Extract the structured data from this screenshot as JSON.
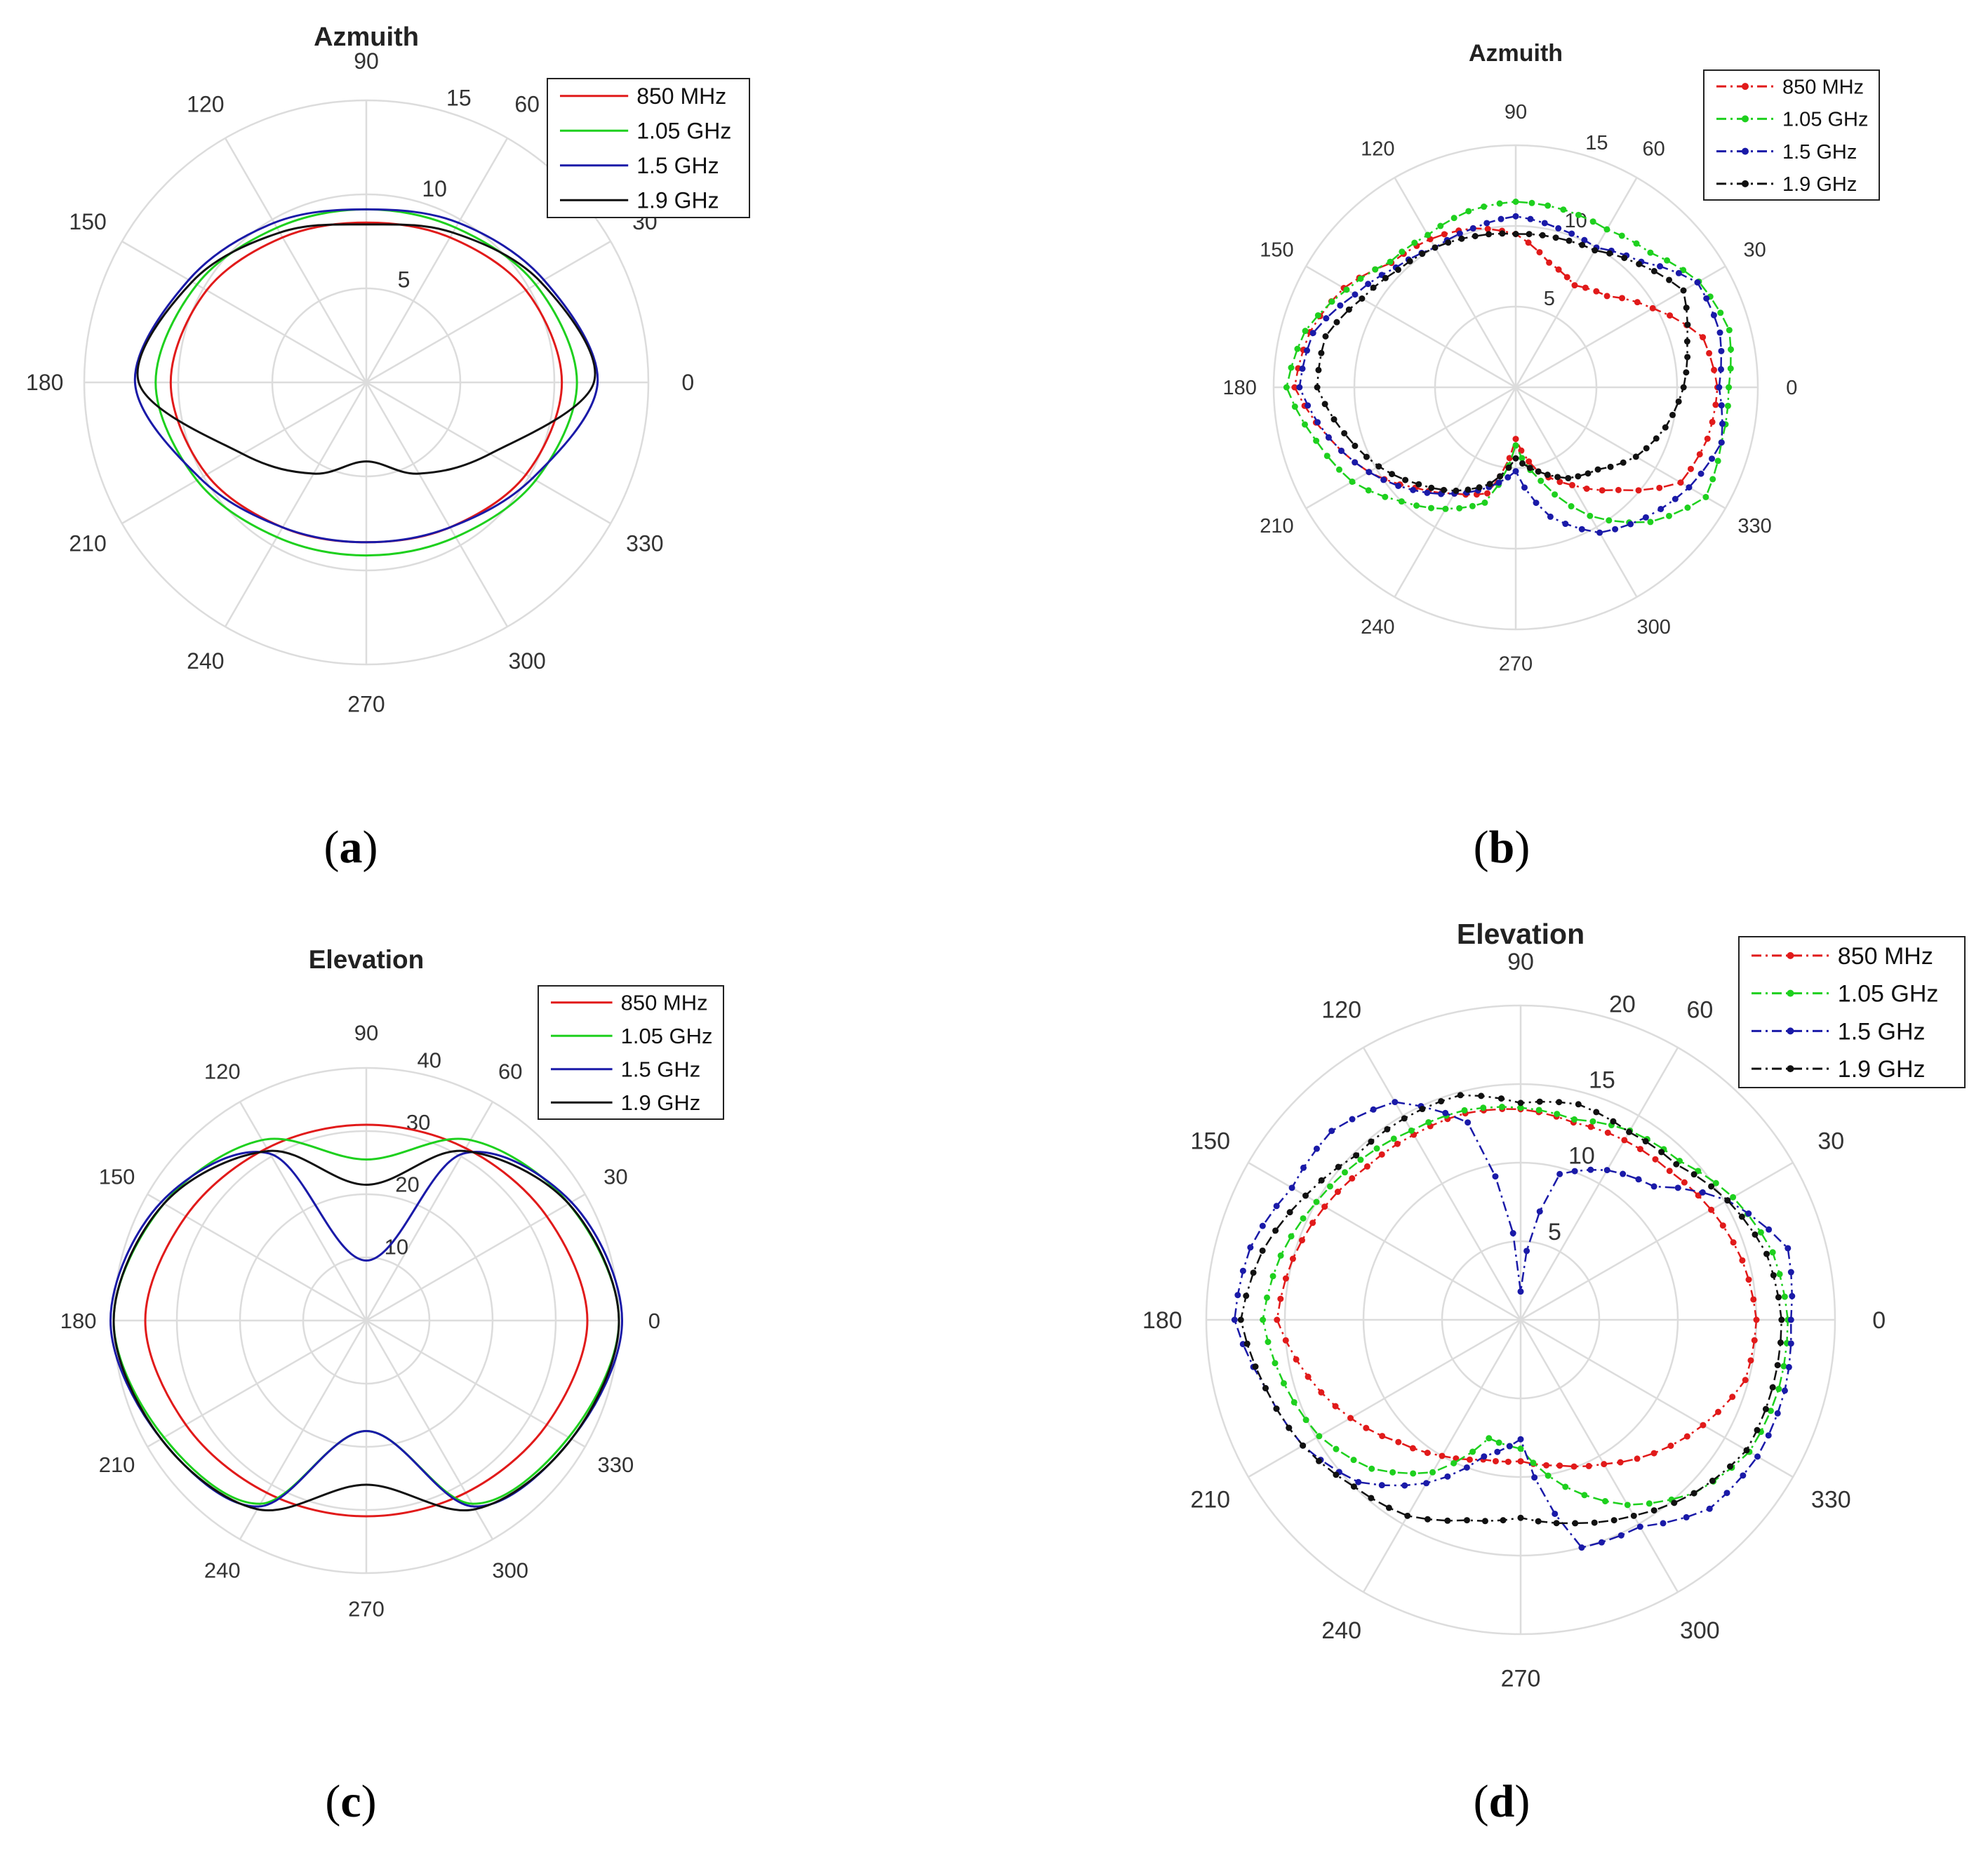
{
  "colors": {
    "850 MHz": "#e11a1a",
    "1.05 GHz": "#1ed01e",
    "1.5 GHz": "#1a1aa8",
    "1.9 GHz": "#111111",
    "grid": "#dcdcdc"
  },
  "captions": [
    {
      "open": "(",
      "letter": "a",
      "close": ")"
    },
    {
      "open": "(",
      "letter": "b",
      "close": ")"
    },
    {
      "open": "(",
      "letter": "c",
      "close": ")"
    },
    {
      "open": "(",
      "letter": "d",
      "close": ")"
    }
  ],
  "chart_data": [
    {
      "type": "polar-line",
      "title": "Azmuith",
      "style": "solid",
      "theta_ticks": [
        "0",
        "30",
        "60",
        "90",
        "120",
        "150",
        "180",
        "210",
        "240",
        "270",
        "300",
        "330"
      ],
      "r_ticks": [
        "5",
        "10",
        "15"
      ],
      "rlim": [
        0,
        15
      ],
      "legend": "top-right",
      "theta_deg": [
        0,
        30,
        60,
        90,
        120,
        150,
        180,
        210,
        240,
        270,
        300,
        330
      ],
      "series": [
        {
          "name": "850 MHz",
          "r": [
            10.4,
            9.8,
            8.9,
            8.5,
            8.9,
            9.8,
            10.4,
            9.8,
            8.9,
            8.5,
            8.9,
            9.8
          ]
        },
        {
          "name": "1.05 GHz",
          "r": [
            11.2,
            10.4,
            9.5,
            9.2,
            9.5,
            10.4,
            11.2,
            10.4,
            9.5,
            9.2,
            9.5,
            10.4
          ]
        },
        {
          "name": "1.5 GHz",
          "r": [
            12.3,
            10.9,
            9.8,
            9.2,
            9.8,
            10.9,
            12.3,
            10.2,
            8.9,
            8.5,
            8.9,
            10.2
          ]
        },
        {
          "name": "1.9 GHz",
          "r": [
            12.1,
            10.7,
            9.2,
            8.4,
            9.2,
            10.7,
            12.1,
            7.6,
            5.6,
            4.2,
            5.6,
            7.6
          ]
        }
      ]
    },
    {
      "type": "polar-line",
      "title": "Azmuith",
      "style": "dashdot-markers",
      "theta_ticks": [
        "0",
        "30",
        "60",
        "90",
        "120",
        "150",
        "180",
        "210",
        "240",
        "270",
        "300",
        "330"
      ],
      "r_ticks": [
        "5",
        "10",
        "15"
      ],
      "rlim": [
        0,
        15
      ],
      "legend": "top-right",
      "theta_deg": [
        0,
        15,
        30,
        45,
        60,
        75,
        90,
        105,
        120,
        135,
        150,
        165,
        180,
        195,
        210,
        225,
        240,
        255,
        270,
        285,
        300,
        315,
        330,
        345
      ],
      "series": [
        {
          "name": "850 MHz",
          "r": [
            12.5,
            12.0,
            9.8,
            8.0,
            7.3,
            8.0,
            9.5,
            10.2,
            10.6,
            10.9,
            12.3,
            13.2,
            13.7,
            12.0,
            10.5,
            8.8,
            7.6,
            6.8,
            3.2,
            5.4,
            7.0,
            9.0,
            11.8,
            12.3
          ]
        },
        {
          "name": "1.05 GHz",
          "r": [
            13.2,
            13.7,
            13.1,
            11.8,
            11.3,
            11.4,
            11.5,
            11.3,
            10.9,
            11.0,
            12.1,
            13.5,
            14.2,
            12.8,
            11.7,
            10.0,
            8.7,
            7.4,
            3.6,
            6.0,
            9.2,
            11.8,
            13.6,
            13.2
          ]
        },
        {
          "name": "1.5 GHz",
          "r": [
            12.6,
            13.1,
            13.0,
            11.0,
            10.0,
            10.2,
            10.6,
            10.2,
            10.0,
            10.5,
            11.5,
            13.0,
            13.4,
            12.0,
            10.5,
            9.0,
            7.6,
            6.4,
            5.2,
            8.3,
            10.4,
            11.4,
            12.4,
            13.2
          ]
        },
        {
          "name": "1.9 GHz",
          "r": [
            10.4,
            11.0,
            12.0,
            10.8,
            9.8,
            9.6,
            9.5,
            9.7,
            10.0,
            10.3,
            11.0,
            12.2,
            12.3,
            11.0,
            9.8,
            8.5,
            7.4,
            6.2,
            4.4,
            5.4,
            6.5,
            7.2,
            8.6,
            9.6
          ]
        }
      ]
    },
    {
      "type": "polar-line",
      "title": "Elevation",
      "style": "solid",
      "theta_ticks": [
        "0",
        "30",
        "60",
        "90",
        "120",
        "150",
        "180",
        "210",
        "240",
        "270",
        "300",
        "330"
      ],
      "r_ticks": [
        "10",
        "20",
        "30",
        "40"
      ],
      "rlim": [
        0,
        40
      ],
      "legend": "top-right",
      "theta_deg": [
        0,
        30,
        60,
        90,
        120,
        150,
        180,
        210,
        240,
        270,
        300,
        330
      ],
      "series": [
        {
          "name": "850 MHz",
          "r": [
            35.0,
            33.0,
            31.5,
            31.0,
            31.5,
            33.0,
            35.0,
            33.0,
            31.5,
            31.0,
            31.5,
            33.0
          ]
        },
        {
          "name": "1.05 GHz",
          "r": [
            40.0,
            37.0,
            33.0,
            25.5,
            33.0,
            37.0,
            40.0,
            37.0,
            33.5,
            17.5,
            33.5,
            37.0
          ]
        },
        {
          "name": "1.5 GHz",
          "r": [
            40.5,
            37.5,
            30.5,
            9.5,
            30.5,
            37.5,
            40.5,
            37.5,
            34.0,
            17.5,
            34.0,
            37.5
          ]
        },
        {
          "name": "1.9 GHz",
          "r": [
            40.0,
            37.0,
            31.0,
            21.5,
            31.0,
            37.0,
            40.0,
            37.5,
            34.5,
            26.0,
            34.5,
            37.5
          ]
        }
      ]
    },
    {
      "type": "polar-line",
      "title": "Elevation",
      "style": "dashdot-markers",
      "theta_ticks": [
        "0",
        "30",
        "60",
        "90",
        "120",
        "150",
        "180",
        "210",
        "240",
        "270",
        "300",
        "330"
      ],
      "r_ticks": [
        "5",
        "10",
        "15",
        "20"
      ],
      "rlim": [
        0,
        20
      ],
      "legend": "top-right",
      "theta_deg": [
        0,
        15,
        30,
        45,
        60,
        75,
        90,
        105,
        120,
        135,
        150,
        165,
        180,
        195,
        210,
        225,
        240,
        255,
        270,
        285,
        300,
        315,
        330,
        345
      ],
      "series": [
        {
          "name": "850 MHz",
          "r": [
            15.0,
            14.6,
            14.0,
            13.4,
            13.2,
            13.0,
            13.4,
            13.6,
            13.6,
            13.8,
            14.4,
            15.0,
            15.5,
            14.0,
            12.5,
            11.0,
            10.0,
            9.2,
            9.0,
            9.6,
            10.6,
            12.0,
            13.4,
            14.8
          ]
        },
        {
          "name": "1.05 GHz",
          "r": [
            17.0,
            16.6,
            15.6,
            14.3,
            13.9,
            13.2,
            13.5,
            13.8,
            13.9,
            14.4,
            15.0,
            15.8,
            16.4,
            15.6,
            14.8,
            13.4,
            11.2,
            7.8,
            8.2,
            11.0,
            13.6,
            15.6,
            16.8,
            17.0
          ]
        },
        {
          "name": "1.5 GHz",
          "r": [
            17.2,
            17.6,
            15.2,
            12.0,
            11.0,
            9.6,
            1.8,
            13.0,
            16.0,
            17.0,
            16.8,
            17.8,
            18.2,
            16.8,
            16.0,
            14.6,
            12.0,
            9.0,
            7.6,
            15.0,
            15.2,
            17.0,
            17.4,
            17.4
          ]
        },
        {
          "name": "1.9 GHz",
          "r": [
            16.6,
            16.2,
            15.2,
            14.0,
            13.8,
            14.2,
            13.8,
            14.8,
            14.8,
            14.8,
            15.8,
            17.0,
            17.8,
            16.8,
            16.0,
            15.0,
            14.4,
            13.2,
            12.6,
            13.4,
            14.4,
            15.6,
            16.6,
            16.6
          ]
        }
      ]
    }
  ]
}
